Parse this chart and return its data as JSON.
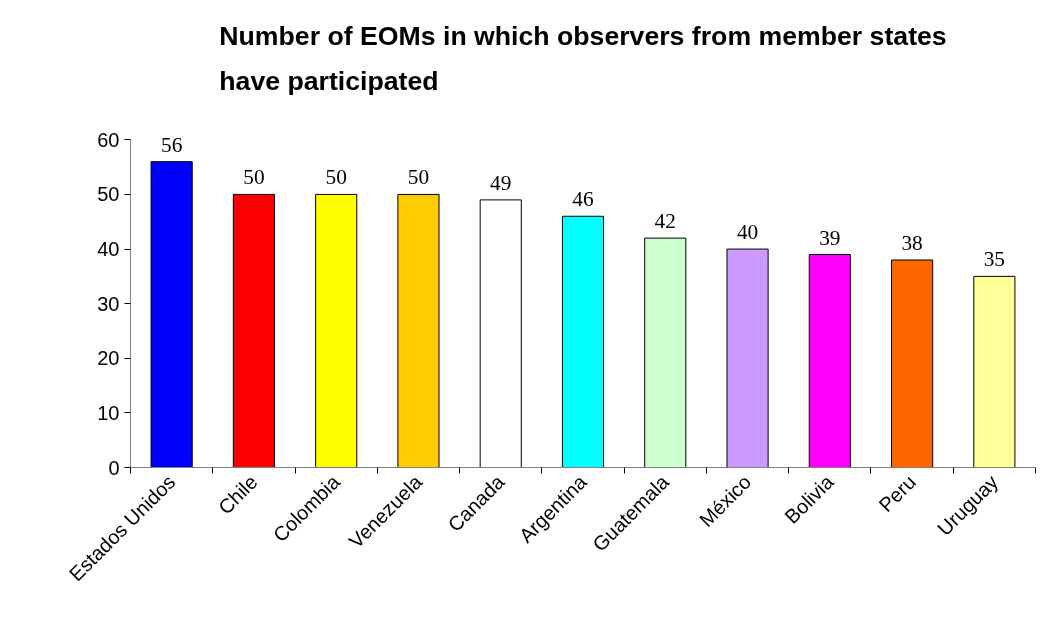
{
  "chart_data": {
    "type": "bar",
    "title": "Number of EOMs in which observers from member states have participated",
    "categories": [
      "Estados Unidos",
      "Chile",
      "Colombia",
      "Venezuela",
      "Canada",
      "Argentina",
      "Guatemala",
      "México",
      "Bolivia",
      "Peru",
      "Uruguay"
    ],
    "values": [
      56,
      50,
      50,
      50,
      49,
      46,
      42,
      40,
      39,
      38,
      35
    ],
    "colors": [
      "#0000ff",
      "#ff0000",
      "#ffff00",
      "#ffcc00",
      "#ffffff",
      "#00ffff",
      "#ccffcc",
      "#cc99ff",
      "#ff00ff",
      "#ff6600",
      "#ffff99"
    ],
    "ylim": [
      0,
      60
    ],
    "yticks": [
      0,
      10,
      20,
      30,
      40,
      50,
      60
    ],
    "data_labels": true,
    "grid": false
  }
}
